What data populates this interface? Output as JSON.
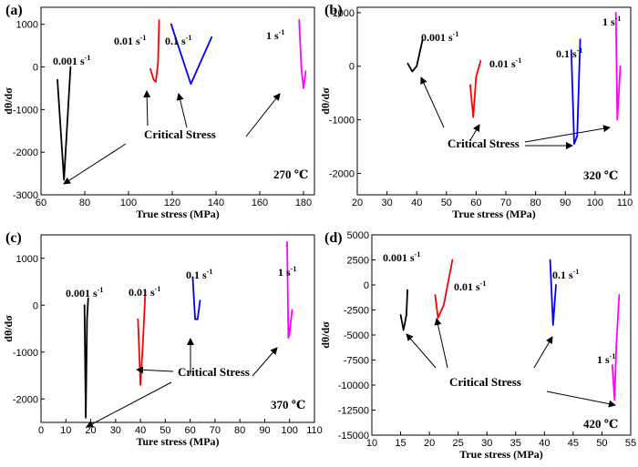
{
  "chart_data": [
    {
      "type": "line",
      "panel_label": "(a)",
      "temperature": "270 ℃",
      "xlabel": "True stress (MPa)",
      "ylabel": "dθ/dσ",
      "xlim": [
        60,
        185
      ],
      "ylim": [
        -3000,
        1400
      ],
      "xticks": [
        60,
        80,
        100,
        120,
        140,
        160,
        180
      ],
      "yticks": [
        -3000,
        -2000,
        -1000,
        0,
        1000
      ],
      "series": [
        {
          "name": "0.001 s-1",
          "color": "#000000",
          "x": [
            67.5,
            70.5,
            73.5
          ],
          "y": [
            -300,
            -2650,
            0
          ]
        },
        {
          "name": "0.01 s-1",
          "color": "#ff0000",
          "x": [
            110.0,
            111.5,
            112.5,
            113.5,
            114.0
          ],
          "y": [
            -50,
            -300,
            -350,
            100,
            1100
          ]
        },
        {
          "name": "0.1 s-1",
          "color": "#0000ff",
          "x": [
            119.5,
            128.5,
            138.0
          ],
          "y": [
            1000,
            -400,
            700
          ]
        },
        {
          "name": "1 s-1",
          "color": "#ff00ff",
          "x": [
            178.0,
            179.0,
            180.0,
            181.0
          ],
          "y": [
            1100,
            0,
            -500,
            -100
          ]
        }
      ],
      "rate_labels": [
        {
          "base": "0.001 s",
          "sup": "-1"
        },
        {
          "base": "0.01 s",
          "sup": "-1"
        },
        {
          "base": "0.1 s",
          "sup": "-1"
        },
        {
          "base": "1 s",
          "sup": "-1"
        }
      ],
      "annotation": "Critical Stress"
    },
    {
      "type": "line",
      "panel_label": "(b)",
      "temperature": "320 ℃",
      "xlabel": "True stress (MPa)",
      "ylabel": "dθ/dσ",
      "xlim": [
        20,
        112
      ],
      "ylim": [
        -2400,
        1100
      ],
      "xticks": [
        20,
        30,
        40,
        50,
        60,
        70,
        80,
        90,
        100,
        110
      ],
      "yticks": [
        -2000,
        -1000,
        0,
        1000
      ],
      "series": [
        {
          "name": "0.001 s-1",
          "color": "#000000",
          "x": [
            37.0,
            38.5,
            40.0,
            42.0
          ],
          "y": [
            50,
            -100,
            0,
            500
          ]
        },
        {
          "name": "0.01 s-1",
          "color": "#ff0000",
          "x": [
            58.0,
            59.0,
            60.0,
            61.5
          ],
          "y": [
            -350,
            -950,
            -200,
            100
          ]
        },
        {
          "name": "0.1 s-1",
          "color": "#0000ff",
          "x": [
            92.0,
            93.0,
            94.0,
            95.0
          ],
          "y": [
            300,
            -1450,
            -1300,
            500
          ]
        },
        {
          "name": "1 s-1",
          "color": "#ff00ff",
          "x": [
            107.0,
            107.5,
            108.0,
            108.5
          ],
          "y": [
            1000,
            -1000,
            -500,
            0
          ]
        }
      ],
      "rate_labels": [
        {
          "base": "0.001 s",
          "sup": "-1"
        },
        {
          "base": "0.01 s",
          "sup": "-1"
        },
        {
          "base": "0.1 s",
          "sup": "-1"
        },
        {
          "base": "1 s",
          "sup": "-1"
        }
      ],
      "annotation": "Critical Stress"
    },
    {
      "type": "line",
      "panel_label": "(c)",
      "temperature": "370 ℃",
      "xlabel": "Ture stress (MPa)",
      "ylabel": "dθ/dσ",
      "xlim": [
        0,
        110
      ],
      "ylim": [
        -2500,
        1500
      ],
      "xticks": [
        0,
        10,
        20,
        30,
        40,
        50,
        60,
        70,
        80,
        90,
        100,
        110
      ],
      "yticks": [
        -2000,
        -1000,
        0,
        1000
      ],
      "series": [
        {
          "name": "0.001 s-1",
          "color": "#000000",
          "x": [
            17.5,
            18.0,
            18.5,
            19.0
          ],
          "y": [
            0,
            -2400,
            -300,
            150
          ]
        },
        {
          "name": "0.01 s-1",
          "color": "#ff0000",
          "x": [
            39.0,
            40.0,
            41.0,
            42.0
          ],
          "y": [
            -300,
            -1700,
            -800,
            300
          ]
        },
        {
          "name": "0.1 s-1",
          "color": "#0000ff",
          "x": [
            61.0,
            62.0,
            63.0,
            64.0
          ],
          "y": [
            600,
            -300,
            -300,
            100
          ]
        },
        {
          "name": "1 s-1",
          "color": "#ff00ff",
          "x": [
            99.0,
            99.5,
            100.0,
            101.0
          ],
          "y": [
            1350,
            -700,
            -600,
            -100
          ]
        }
      ],
      "rate_labels": [
        {
          "base": "0.001 s",
          "sup": "-1"
        },
        {
          "base": "0.01 s",
          "sup": "-1"
        },
        {
          "base": "0.1 s",
          "sup": "-1"
        },
        {
          "base": "1 s",
          "sup": "-1"
        }
      ],
      "annotation": "Critical Stress"
    },
    {
      "type": "line",
      "panel_label": "(d)",
      "temperature": "420 ℃",
      "xlabel": "True stress (MPa)",
      "ylabel": "dθ/dσ",
      "xlim": [
        10,
        55
      ],
      "ylim": [
        -15000,
        5000
      ],
      "xticks": [
        10,
        15,
        20,
        25,
        30,
        35,
        40,
        45,
        50,
        55
      ],
      "yticks": [
        -15000,
        -12500,
        -10000,
        -7500,
        -5000,
        -2500,
        0,
        2500,
        5000
      ],
      "series": [
        {
          "name": "0.001 s-1",
          "color": "#000000",
          "x": [
            15.0,
            15.5,
            16.0,
            16.2
          ],
          "y": [
            -3000,
            -4500,
            -3000,
            -500
          ]
        },
        {
          "name": "0.01 s-1",
          "color": "#ff0000",
          "x": [
            21.0,
            21.5,
            22.5,
            24.0
          ],
          "y": [
            -1000,
            -3300,
            -2000,
            2500
          ]
        },
        {
          "name": "0.1 s-1",
          "color": "#0000ff",
          "x": [
            41.0,
            41.5,
            42.0
          ],
          "y": [
            2500,
            -4000,
            0
          ]
        },
        {
          "name": "1 s-1",
          "color": "#ff00ff",
          "x": [
            51.8,
            52.2,
            52.5,
            53.0
          ],
          "y": [
            -8000,
            -11500,
            -6000,
            -1000
          ]
        }
      ],
      "rate_labels": [
        {
          "base": "0.001 s",
          "sup": "-1"
        },
        {
          "base": "0.01 s",
          "sup": "-1"
        },
        {
          "base": "0.1 s",
          "sup": "-1"
        },
        {
          "base": "1 s",
          "sup": "-1"
        }
      ],
      "annotation": "Critical Stress"
    }
  ]
}
